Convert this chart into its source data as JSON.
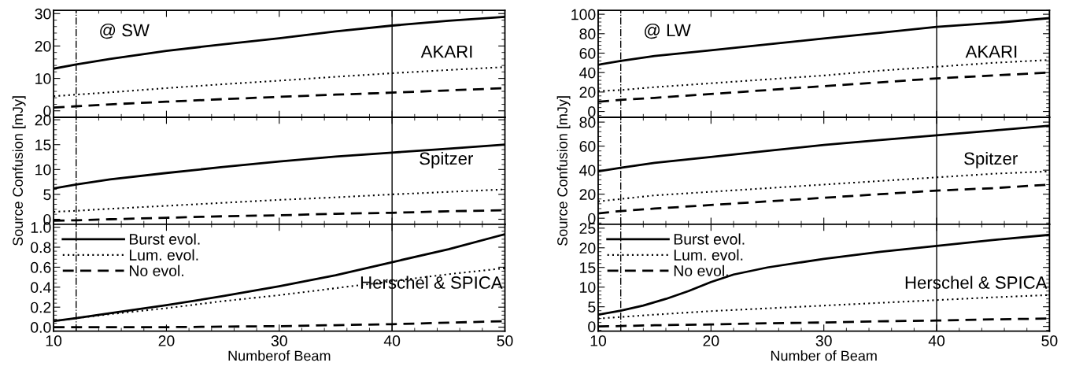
{
  "chart_data": [
    {
      "type": "line",
      "annotations": [
        "AKARI",
        "@ SW"
      ],
      "x": [
        10,
        12,
        15,
        20,
        25,
        30,
        35,
        40,
        45,
        50
      ],
      "xlim": [
        10,
        50
      ],
      "xticks": [
        10,
        20,
        30,
        40,
        50
      ],
      "ylim": [
        -2,
        31
      ],
      "yticks": [
        0,
        10,
        20,
        30
      ],
      "tick_labels": "y",
      "legend": false,
      "ref_lines": [
        {
          "axis": "x",
          "value": 12,
          "color": "#000000",
          "line_style": "dashdot"
        },
        {
          "axis": "x",
          "value": 40,
          "color": "#000000",
          "line_style": "solid"
        }
      ],
      "series": [
        {
          "color": "#000000",
          "line_style": "solid",
          "values": [
            13,
            14.3,
            16,
            18.5,
            20.5,
            22.4,
            24.5,
            26.3,
            27.8,
            29
          ]
        },
        {
          "color": "#000000",
          "line_style": "dotted",
          "values": [
            4.5,
            5,
            5.7,
            7,
            8.2,
            9.3,
            10.5,
            11.6,
            12.6,
            13.5
          ]
        },
        {
          "color": "#000000",
          "line_style": "dashed",
          "values": [
            1,
            1.4,
            2,
            2.8,
            3.6,
            4.3,
            5,
            5.6,
            6.3,
            7
          ]
        }
      ]
    },
    {
      "type": "line",
      "annotations": [
        "Spitzer"
      ],
      "ylabel": "Source Confusion [mJy]",
      "x": [
        10,
        12,
        15,
        20,
        25,
        30,
        35,
        40,
        45,
        50
      ],
      "xlim": [
        10,
        50
      ],
      "xticks": [
        10,
        20,
        30,
        40,
        50
      ],
      "ylim": [
        -1,
        20.5
      ],
      "yticks": [
        0,
        5,
        10,
        15,
        20
      ],
      "tick_labels": "y",
      "legend": false,
      "ref_lines": [
        {
          "axis": "x",
          "value": 12,
          "color": "#000000",
          "line_style": "dashdot"
        },
        {
          "axis": "x",
          "value": 40,
          "color": "#000000",
          "line_style": "solid"
        }
      ],
      "series": [
        {
          "color": "#000000",
          "line_style": "solid",
          "values": [
            6.2,
            7,
            8,
            9.3,
            10.5,
            11.6,
            12.6,
            13.4,
            14.2,
            15
          ]
        },
        {
          "color": "#000000",
          "line_style": "dotted",
          "values": [
            1.5,
            1.7,
            2.1,
            2.7,
            3.3,
            3.9,
            4.4,
            5,
            5.5,
            6
          ]
        },
        {
          "color": "#000000",
          "line_style": "dashed",
          "values": [
            -0.3,
            -0.2,
            0,
            0.3,
            0.6,
            0.8,
            1.1,
            1.3,
            1.6,
            1.8
          ]
        }
      ]
    },
    {
      "type": "line",
      "annotations": [
        "Herschel & SPICA"
      ],
      "xlabel": "Numberof Beam",
      "x": [
        10,
        12,
        15,
        20,
        25,
        30,
        35,
        40,
        45,
        50
      ],
      "xlim": [
        10,
        50
      ],
      "xticks": [
        10,
        20,
        30,
        40,
        50
      ],
      "ylim": [
        -0.04,
        1.03
      ],
      "yticks": [
        {
          "value": 0,
          "label": "0.0"
        },
        {
          "value": 0.2,
          "label": "0.2"
        },
        {
          "value": 0.4,
          "label": "0.4"
        },
        {
          "value": 0.6,
          "label": "0.6"
        },
        {
          "value": 0.8,
          "label": "0.8"
        },
        {
          "value": 1,
          "label": "1.0"
        }
      ],
      "legend": "top left",
      "ref_lines": [
        {
          "axis": "x",
          "value": 12,
          "color": "#000000",
          "line_style": "dashdot"
        },
        {
          "axis": "x",
          "value": 40,
          "color": "#000000",
          "line_style": "solid"
        }
      ],
      "series": [
        {
          "name": "Burst evol.",
          "color": "#000000",
          "line_style": "solid",
          "values": [
            0.06,
            0.09,
            0.14,
            0.22,
            0.31,
            0.41,
            0.52,
            0.65,
            0.78,
            0.93
          ]
        },
        {
          "name": "Lum. evol.",
          "color": "#000000",
          "line_style": "dotted",
          "values": [
            0.06,
            0.09,
            0.13,
            0.19,
            0.26,
            0.32,
            0.39,
            0.46,
            0.53,
            0.59
          ]
        },
        {
          "name": "No evol.",
          "color": "#000000",
          "line_style": "dashed",
          "values": [
            0,
            0,
            0,
            0,
            0.005,
            0.01,
            0.02,
            0.03,
            0.045,
            0.06
          ]
        }
      ]
    },
    {
      "type": "line",
      "annotations": [
        "AKARI",
        "@ LW"
      ],
      "x": [
        10,
        12,
        15,
        20,
        25,
        30,
        35,
        40,
        45,
        50
      ],
      "xlim": [
        10,
        50
      ],
      "xticks": [
        10,
        20,
        30,
        40,
        50
      ],
      "ylim": [
        -6,
        104
      ],
      "yticks": [
        0,
        20,
        40,
        60,
        80,
        100
      ],
      "tick_labels": "y",
      "legend": false,
      "ref_lines": [
        {
          "axis": "x",
          "value": 12,
          "color": "#000000",
          "line_style": "dashdot"
        },
        {
          "axis": "x",
          "value": 40,
          "color": "#000000",
          "line_style": "solid"
        }
      ],
      "series": [
        {
          "color": "#000000",
          "line_style": "solid",
          "values": [
            48,
            52,
            57,
            63,
            69,
            75,
            81,
            87,
            91,
            96
          ]
        },
        {
          "color": "#000000",
          "line_style": "dotted",
          "values": [
            21,
            22,
            25,
            29,
            33,
            37,
            42,
            46,
            50,
            53
          ]
        },
        {
          "color": "#000000",
          "line_style": "dashed",
          "values": [
            10,
            12,
            14,
            18,
            22,
            26,
            30,
            34,
            37,
            40
          ]
        }
      ]
    },
    {
      "type": "line",
      "annotations": [
        "Spitzer"
      ],
      "ylabel": "Source Confusion [mJy]",
      "x": [
        10,
        12,
        15,
        20,
        25,
        30,
        35,
        40,
        45,
        50
      ],
      "xlim": [
        10,
        50
      ],
      "xticks": [
        10,
        20,
        30,
        40,
        50
      ],
      "ylim": [
        -5,
        84
      ],
      "yticks": [
        0,
        20,
        40,
        60,
        80
      ],
      "tick_labels": "y",
      "legend": false,
      "ref_lines": [
        {
          "axis": "x",
          "value": 12,
          "color": "#000000",
          "line_style": "dashdot"
        },
        {
          "axis": "x",
          "value": 40,
          "color": "#000000",
          "line_style": "solid"
        }
      ],
      "series": [
        {
          "color": "#000000",
          "line_style": "solid",
          "values": [
            39,
            42,
            46,
            51,
            56,
            61,
            65,
            69,
            73,
            77
          ]
        },
        {
          "color": "#000000",
          "line_style": "dotted",
          "values": [
            14,
            16,
            19,
            22,
            25,
            28,
            31,
            34,
            37,
            39
          ]
        },
        {
          "color": "#000000",
          "line_style": "dashed",
          "values": [
            4,
            6,
            8,
            11,
            14,
            17,
            20,
            23,
            25,
            28
          ]
        }
      ]
    },
    {
      "type": "line",
      "annotations": [
        "Herschel & SPICA"
      ],
      "xlabel": "Number of Beam",
      "x": [
        10,
        12,
        15,
        20,
        25,
        30,
        35,
        40,
        45,
        50
      ],
      "xlim": [
        10,
        50
      ],
      "xticks": [
        10,
        20,
        30,
        40,
        50
      ],
      "ylim": [
        -1.2,
        26
      ],
      "yticks": [
        0,
        5,
        10,
        15,
        20,
        25
      ],
      "legend": "top left",
      "ref_lines": [
        {
          "axis": "x",
          "value": 12,
          "color": "#000000",
          "line_style": "dashdot"
        },
        {
          "axis": "x",
          "value": 40,
          "color": "#000000",
          "line_style": "solid"
        }
      ],
      "series": [
        {
          "name": "Burst evol.",
          "color": "#000000",
          "line_style": "solid",
          "x": [
            10,
            12,
            14,
            16,
            18,
            20,
            22,
            25,
            30,
            35,
            40,
            45,
            50
          ],
          "values": [
            3,
            4,
            5.3,
            7,
            9,
            11.3,
            13.2,
            15,
            17.2,
            19,
            20.5,
            22,
            23.3
          ]
        },
        {
          "name": "Lum. evol.",
          "color": "#000000",
          "line_style": "dotted",
          "values": [
            2,
            2.4,
            3,
            3.9,
            4.6,
            5.3,
            6,
            6.7,
            7.4,
            8
          ]
        },
        {
          "name": "No evol.",
          "color": "#000000",
          "line_style": "dashed",
          "values": [
            0,
            0.1,
            0.3,
            0.5,
            0.8,
            1,
            1.3,
            1.5,
            1.8,
            2
          ]
        }
      ]
    }
  ]
}
